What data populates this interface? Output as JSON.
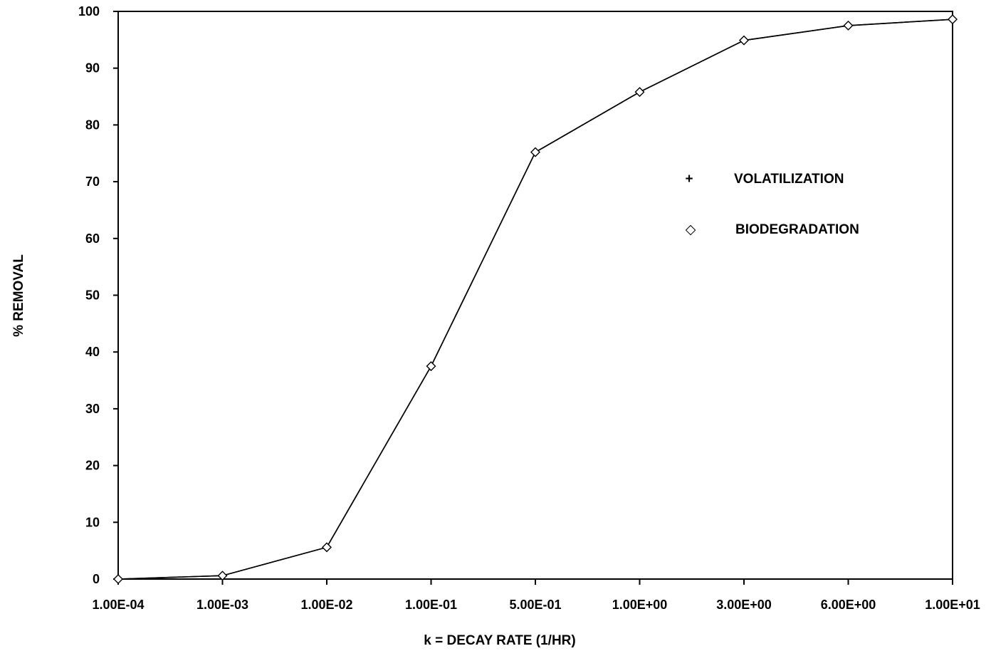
{
  "chart_data": {
    "type": "line",
    "title": "",
    "xlabel": "k = DECAY RATE (1/HR)",
    "ylabel": "% REMOVAL",
    "x_scale": "categorical",
    "categories": [
      "1.00E-04",
      "1.00E-03",
      "1.00E-02",
      "1.00E-01",
      "5.00E-01",
      "1.00E+00",
      "3.00E+00",
      "6.00E+00",
      "1.00E+01"
    ],
    "yticks": [
      "0",
      "10",
      "20",
      "30",
      "40",
      "50",
      "60",
      "70",
      "80",
      "90",
      "100"
    ],
    "ylim": [
      0,
      100
    ],
    "grid": false,
    "legend_placement": "upper-right inside plot",
    "legend": [
      {
        "name": "VOLATILIZATION",
        "marker": "+"
      },
      {
        "name": "BIODEGRADATION",
        "marker": "◇"
      }
    ],
    "series": [
      {
        "name": "VOLATILIZATION",
        "marker": "plus",
        "values": [
          0,
          0.6,
          5.6,
          37.5,
          75.2,
          85.8,
          94.9,
          97.5,
          98.6
        ]
      },
      {
        "name": "BIODEGRADATION",
        "marker": "diamond",
        "values": [
          0,
          0.6,
          5.6,
          37.5,
          75.2,
          85.8,
          94.9,
          97.5,
          98.6
        ]
      }
    ]
  }
}
